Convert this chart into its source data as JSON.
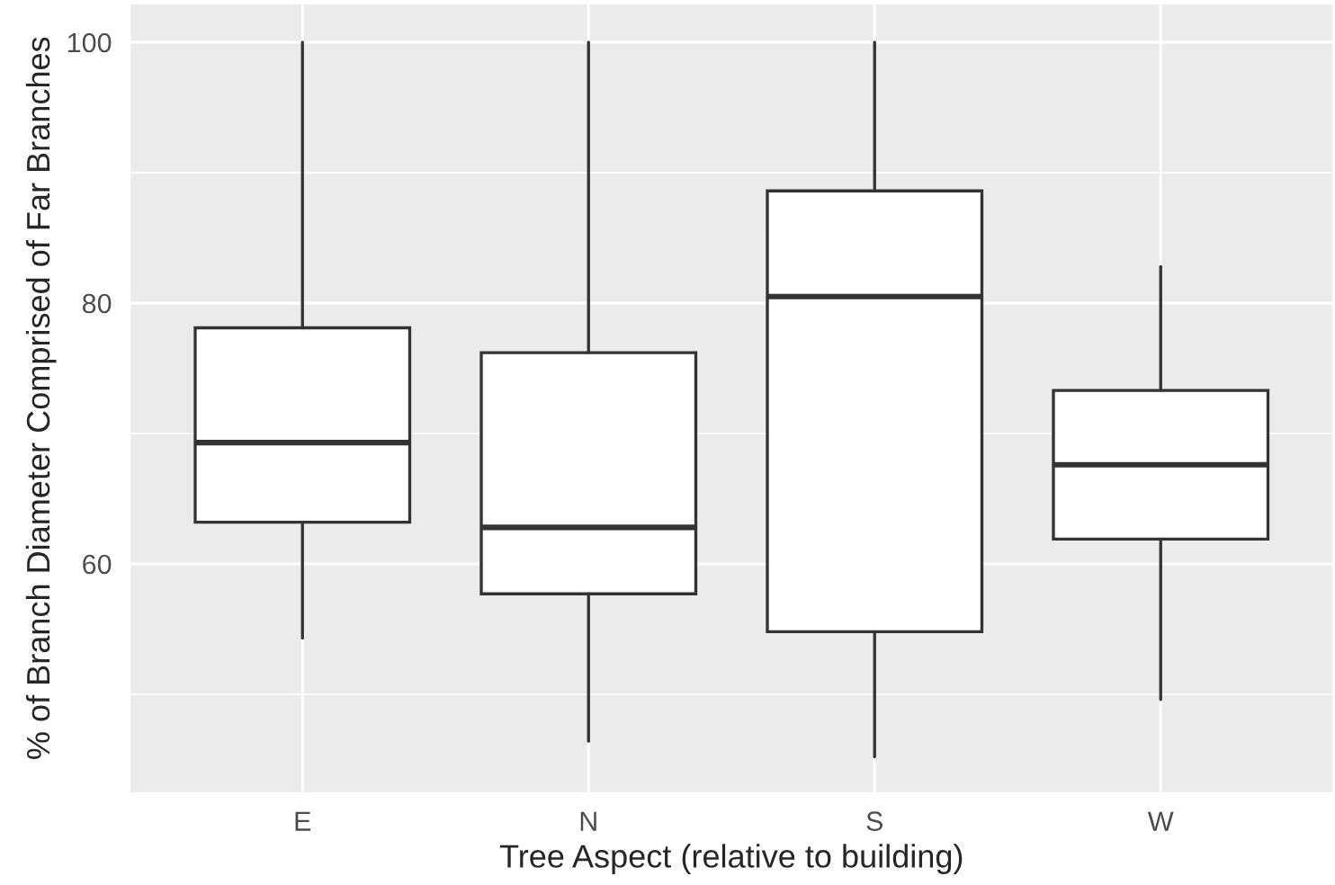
{
  "chart_data": {
    "type": "box",
    "xlabel": "Tree Aspect (relative to building)",
    "ylabel": "% of Branch Diameter Comprised of Far Branches",
    "categories": [
      "E",
      "N",
      "S",
      "W"
    ],
    "boxes": [
      {
        "low": 54.3,
        "q1": 63.2,
        "median": 69.3,
        "q3": 78.1,
        "high": 100
      },
      {
        "low": 46.4,
        "q1": 57.7,
        "median": 62.8,
        "q3": 76.2,
        "high": 100
      },
      {
        "low": 45.2,
        "q1": 54.8,
        "median": 80.5,
        "q3": 88.6,
        "high": 100
      },
      {
        "low": 49.6,
        "q1": 61.9,
        "median": 67.6,
        "q3": 73.3,
        "high": 82.8
      }
    ],
    "ylim": [
      42.5,
      102.9
    ],
    "yticks": [
      {
        "value": 50,
        "label": null
      },
      60,
      {
        "value": 70,
        "label": null
      },
      80,
      {
        "value": 90,
        "label": null
      },
      100
    ],
    "grid": true
  }
}
